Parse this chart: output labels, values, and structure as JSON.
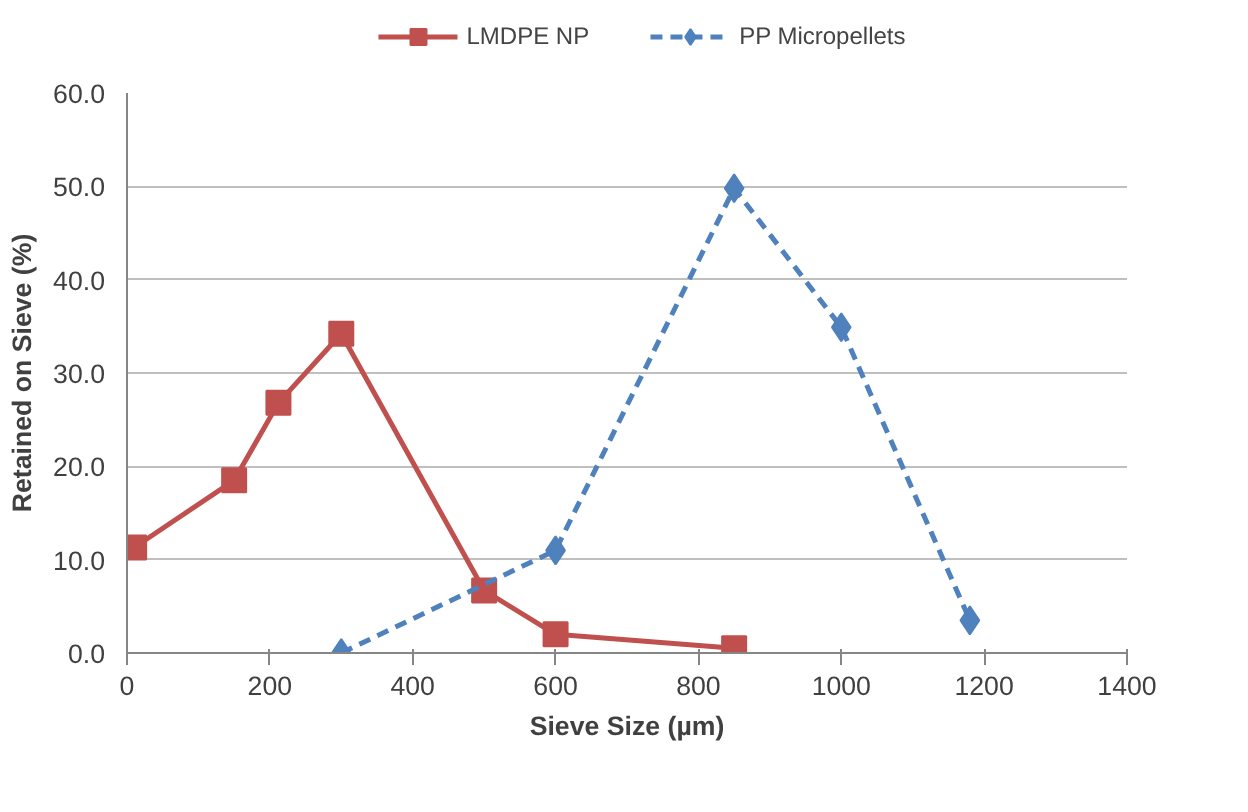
{
  "chart_data": {
    "type": "line",
    "xlabel": "Sieve Size (µm)",
    "ylabel": "Retained on Sieve (%)",
    "series": [
      {
        "name": "LMDPE NP",
        "color": "#c0504d",
        "marker": "square",
        "line_style": "solid",
        "x": [
          10,
          150,
          212,
          300,
          500,
          600,
          850
        ],
        "values": [
          11.3,
          18.5,
          26.8,
          34.2,
          6.7,
          2.0,
          0.5
        ]
      },
      {
        "name": "PP Micropellets",
        "color": "#4f81bd",
        "marker": "diamond",
        "line_style": "dashed",
        "x": [
          300,
          600,
          850,
          1000,
          1180
        ],
        "values": [
          0.0,
          11.0,
          49.8,
          34.9,
          3.5
        ]
      }
    ],
    "xlim": [
      0,
      1400
    ],
    "xticks": [
      0,
      200,
      400,
      600,
      800,
      1000,
      1200,
      1400
    ],
    "ylim": [
      0,
      60
    ],
    "yticks": [
      {
        "value": 0,
        "label": "0.0"
      },
      {
        "value": 10,
        "label": "10.0"
      },
      {
        "value": 20,
        "label": "20.0"
      },
      {
        "value": 30,
        "label": "30.0"
      },
      {
        "value": 40,
        "label": "40.0"
      },
      {
        "value": 50,
        "label": "50.0"
      },
      {
        "value": 60,
        "label": "60.0"
      }
    ],
    "grid": "y",
    "legend": "top"
  }
}
